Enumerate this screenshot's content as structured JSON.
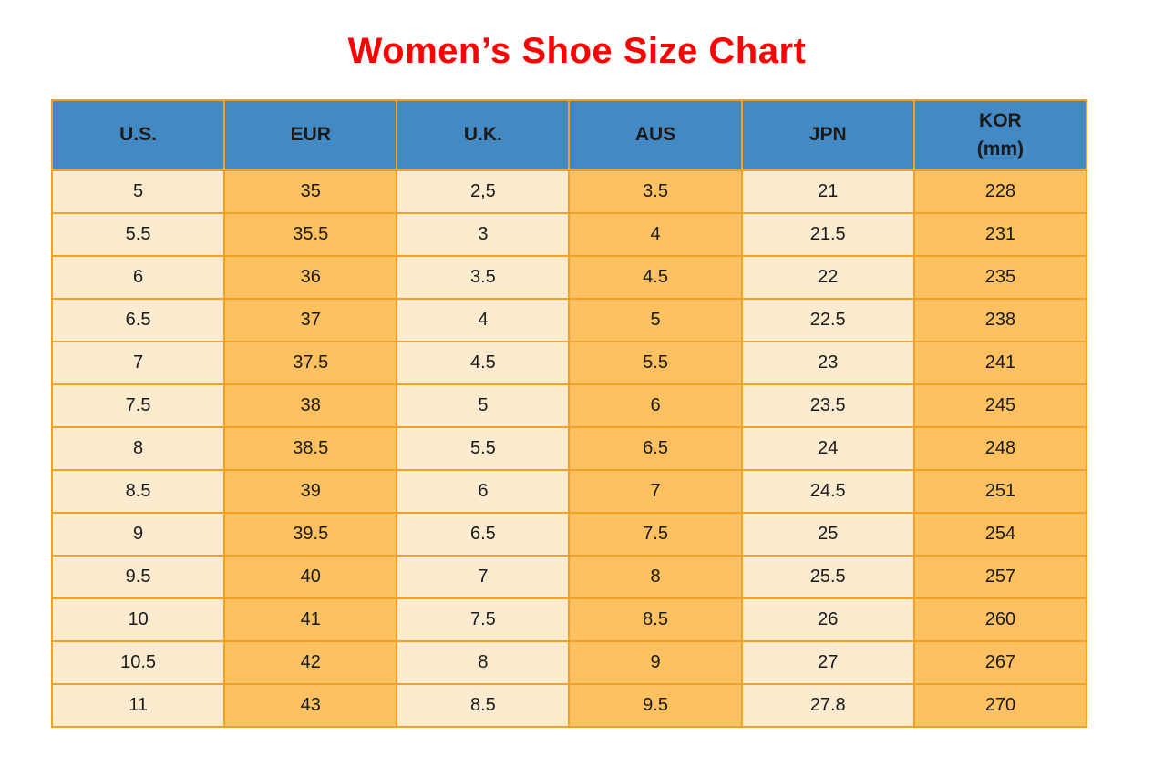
{
  "title": "Women’s Shoe Size Chart",
  "colors": {
    "title_red": "#FF0000",
    "header_blue": "#4389C4",
    "light_cell": "#FDEBD0",
    "orange_cell": "#FEC162",
    "border_orange": "#F1A128",
    "cell_text": "#1A1A1A",
    "page_bg": "#FFFFFF"
  },
  "chart_data": {
    "type": "table",
    "title": "Women’s Shoe Size Chart",
    "columns": [
      {
        "id": "us",
        "label": "U.S."
      },
      {
        "id": "eur",
        "label": "EUR"
      },
      {
        "id": "uk",
        "label": "U.K."
      },
      {
        "id": "aus",
        "label": "AUS"
      },
      {
        "id": "jpn",
        "label": "JPN"
      },
      {
        "id": "kor",
        "label": "KOR\n(mm)"
      }
    ],
    "rows": [
      [
        "5",
        "35",
        "2,5",
        "3.5",
        "21",
        "228"
      ],
      [
        "5.5",
        "35.5",
        "3",
        "4",
        "21.5",
        "231"
      ],
      [
        "6",
        "36",
        "3.5",
        "4.5",
        "22",
        "235"
      ],
      [
        "6.5",
        "37",
        "4",
        "5",
        "22.5",
        "238"
      ],
      [
        "7",
        "37.5",
        "4.5",
        "5.5",
        "23",
        "241"
      ],
      [
        "7.5",
        "38",
        "5",
        "6",
        "23.5",
        "245"
      ],
      [
        "8",
        "38.5",
        "5.5",
        "6.5",
        "24",
        "248"
      ],
      [
        "8.5",
        "39",
        "6",
        "7",
        "24.5",
        "251"
      ],
      [
        "9",
        "39.5",
        "6.5",
        "7.5",
        "25",
        "254"
      ],
      [
        "9.5",
        "40",
        "7",
        "8",
        "25.5",
        "257"
      ],
      [
        "10",
        "41",
        "7.5",
        "8.5",
        "26",
        "260"
      ],
      [
        "10.5",
        "42",
        "8",
        "9",
        "27",
        "267"
      ],
      [
        "11",
        "43",
        "8.5",
        "9.5",
        "27.8",
        "270"
      ]
    ]
  }
}
